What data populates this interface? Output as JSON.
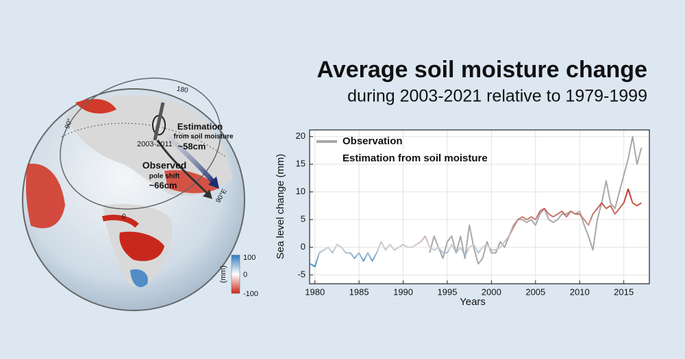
{
  "chart_data": {
    "type": "line",
    "title": "Average soil moisture change",
    "subtitle": "during 2003-2021 relative to 1979-1999",
    "x_label": "Years",
    "y_label": "Sea level change (mm)",
    "x": [
      1979.5,
      1980,
      1980.5,
      1981,
      1981.5,
      1982,
      1982.5,
      1983,
      1983.5,
      1984,
      1984.5,
      1985,
      1985.5,
      1986,
      1986.5,
      1987,
      1987.5,
      1988,
      1988.5,
      1989,
      1989.5,
      1990,
      1990.5,
      1991,
      1991.5,
      1992,
      1992.5,
      1993,
      1993.5,
      1994,
      1994.5,
      1995,
      1995.5,
      1996,
      1996.5,
      1997,
      1997.5,
      1998,
      1998.5,
      1999,
      1999.5,
      2000,
      2000.5,
      2001,
      2001.5,
      2002,
      2002.5,
      2003,
      2003.5,
      2004,
      2004.5,
      2005,
      2005.5,
      2006,
      2006.5,
      2007,
      2007.5,
      2008,
      2008.5,
      2009,
      2009.5,
      2010,
      2010.5,
      2011,
      2011.5,
      2012,
      2012.5,
      2013,
      2013.5,
      2014,
      2014.5,
      2015,
      2015.5,
      2016,
      2016.5,
      2017
    ],
    "series": [
      {
        "name": "Observation",
        "color": "#a8a8a8",
        "values": [
          null,
          null,
          null,
          null,
          null,
          null,
          null,
          null,
          null,
          null,
          null,
          null,
          null,
          null,
          null,
          null,
          null,
          null,
          null,
          null,
          null,
          null,
          null,
          null,
          null,
          null,
          null,
          -1,
          2,
          0,
          -2,
          1,
          2,
          -1,
          2,
          -2,
          4,
          0,
          -3,
          -2,
          1,
          -1,
          -1,
          1,
          0,
          2,
          4,
          5,
          5,
          4.5,
          5,
          4,
          6,
          7,
          5,
          4.5,
          5,
          6,
          6,
          6.5,
          6,
          6.5,
          4,
          2,
          -0.5,
          5,
          8,
          12,
          8,
          7,
          10,
          13,
          16,
          20,
          15,
          18
        ]
      },
      {
        "name": "Estimation from soil moisture",
        "colors": [
          "#3b8ccc",
          "#cfcfcf",
          "#c0301c"
        ],
        "values": [
          -3,
          -3.5,
          -1,
          -0.5,
          0,
          -1,
          0.5,
          0,
          -1,
          -1,
          -2,
          -1,
          -2.5,
          -1,
          -2.5,
          -1,
          1,
          -0.5,
          0.5,
          -0.5,
          0,
          0.5,
          0,
          0,
          0.5,
          1,
          2,
          0,
          -0.5,
          0,
          -1,
          -1,
          0.5,
          -1,
          0,
          -1.5,
          0,
          0.5,
          -1,
          0,
          0.5,
          -0.5,
          -0.5,
          0,
          1,
          2,
          3.5,
          5,
          5.5,
          5,
          5.5,
          5,
          6.5,
          7,
          6,
          5.5,
          6,
          6.5,
          5.5,
          6.5,
          6,
          6,
          5,
          4,
          6,
          7,
          8,
          7,
          7.5,
          6,
          7,
          8,
          10.5,
          8,
          7.5,
          8
        ]
      }
    ],
    "xlim": [
      1979.4,
      2017.9
    ],
    "xticks": [
      1980,
      1985,
      1990,
      1995,
      2000,
      2005,
      2010,
      2015
    ],
    "ylim": [
      -6.6,
      21.2
    ],
    "yticks": [
      -5,
      0,
      5,
      10,
      15,
      20
    ],
    "grid": true,
    "legend": "upper left"
  },
  "globe": {
    "labels": [
      "180",
      "90°",
      "90°E",
      "0",
      "2003-2011"
    ],
    "estimation": {
      "title": "Estimation",
      "subtitle": "from soil moisture",
      "value": "~58cm"
    },
    "observed": {
      "title": "Observed",
      "subtitle": "pole shift",
      "value": "~66cm"
    },
    "colorbar": {
      "unit": "(mm)",
      "ticks": [
        100,
        0,
        -100
      ]
    }
  }
}
